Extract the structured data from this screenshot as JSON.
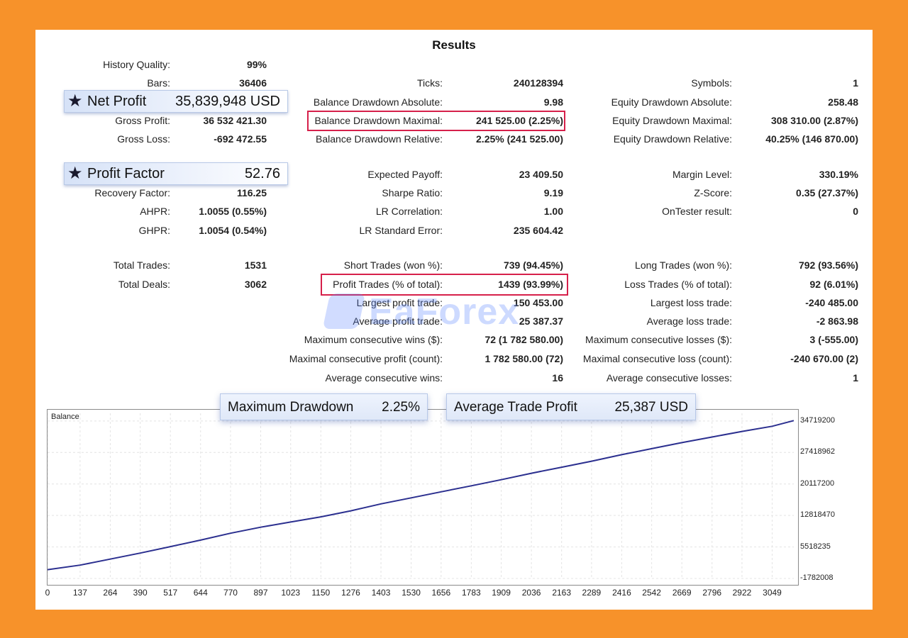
{
  "title": "Results",
  "col1": [
    {
      "label": "History Quality:",
      "value": "99%"
    },
    {
      "label": "Bars:",
      "value": "36406"
    },
    {
      "label": "Gross Profit:",
      "value": "36 532 421.30"
    },
    {
      "label": "Gross Loss:",
      "value": "-692 472.55"
    },
    {
      "label": "Recovery Factor:",
      "value": "116.25"
    },
    {
      "label": "AHPR:",
      "value": "1.0055 (0.55%)"
    },
    {
      "label": "GHPR:",
      "value": "1.0054 (0.54%)"
    },
    {
      "label": "Total Trades:",
      "value": "1531"
    },
    {
      "label": "Total Deals:",
      "value": "3062"
    }
  ],
  "col2": [
    {
      "label": "Ticks:",
      "value": "240128394"
    },
    {
      "label": "Balance Drawdown Absolute:",
      "value": "9.98"
    },
    {
      "label": "Balance Drawdown Maximal:",
      "value": "241 525.00 (2.25%)"
    },
    {
      "label": "Balance Drawdown Relative:",
      "value": "2.25% (241 525.00)"
    },
    {
      "label": "Expected Payoff:",
      "value": "23 409.50"
    },
    {
      "label": "Sharpe Ratio:",
      "value": "9.19"
    },
    {
      "label": "LR Correlation:",
      "value": "1.00"
    },
    {
      "label": "LR Standard Error:",
      "value": "235 604.42"
    },
    {
      "label": "Short Trades (won %):",
      "value": "739 (94.45%)"
    },
    {
      "label": "Profit Trades (% of total):",
      "value": "1439 (93.99%)"
    },
    {
      "label": "Largest profit trade:",
      "value": "150 453.00"
    },
    {
      "label": "Average profit trade:",
      "value": "25 387.37"
    },
    {
      "label": "Maximum consecutive wins ($):",
      "value": "72 (1 782 580.00)"
    },
    {
      "label": "Maximal consecutive profit (count):",
      "value": "1 782 580.00 (72)"
    },
    {
      "label": "Average consecutive wins:",
      "value": "16"
    }
  ],
  "col3": [
    {
      "label": "Symbols:",
      "value": "1"
    },
    {
      "label": "Equity Drawdown Absolute:",
      "value": "258.48"
    },
    {
      "label": "Equity Drawdown Maximal:",
      "value": "308 310.00 (2.87%)"
    },
    {
      "label": "Equity Drawdown Relative:",
      "value": "40.25% (146 870.00)"
    },
    {
      "label": "Margin Level:",
      "value": "330.19%"
    },
    {
      "label": "Z-Score:",
      "value": "0.35 (27.37%)"
    },
    {
      "label": "OnTester result:",
      "value": "0"
    },
    {
      "label": "Long Trades (won %):",
      "value": "792 (93.56%)"
    },
    {
      "label": "Loss Trades (% of total):",
      "value": "92 (6.01%)"
    },
    {
      "label": "Largest loss trade:",
      "value": "-240 485.00"
    },
    {
      "label": "Average loss trade:",
      "value": "-2 863.98"
    },
    {
      "label": "Maximum consecutive losses ($):",
      "value": "3 (-555.00)"
    },
    {
      "label": "Maximal consecutive loss (count):",
      "value": "-240 670.00 (2)"
    },
    {
      "label": "Average consecutive losses:",
      "value": "1"
    }
  ],
  "highlights": {
    "net_profit_label": "Net Profit",
    "net_profit_value": "35,839,948 USD",
    "profit_factor_label": "Profit Factor",
    "profit_factor_value": "52.76"
  },
  "callouts": {
    "max_dd_label": "Maximum Drawdown",
    "max_dd_value": "2.25%",
    "avg_trade_label": "Average Trade Profit",
    "avg_trade_value": "25,387 USD"
  },
  "watermark": "EaForex",
  "colors": {
    "background": "#f7922a",
    "highlight_border": "#d6204a",
    "line": "#2b2f8f"
  },
  "chart_data": {
    "type": "line",
    "title": "Balance",
    "x_ticks": [
      "0",
      "137",
      "264",
      "390",
      "517",
      "644",
      "770",
      "897",
      "1023",
      "1150",
      "1276",
      "1403",
      "1530",
      "1656",
      "1783",
      "1909",
      "2036",
      "2163",
      "2289",
      "2416",
      "2542",
      "2669",
      "2796",
      "2922",
      "3049"
    ],
    "y_ticks": [
      "34719200",
      "27418962",
      "20117200",
      "12818470",
      "5518235",
      "-1782008"
    ],
    "ylim": [
      -1782008,
      36500000
    ],
    "xlim": [
      0,
      3140
    ],
    "series": [
      {
        "values": [
          [
            0,
            250000
          ],
          [
            137,
            1300000
          ],
          [
            264,
            2700000
          ],
          [
            390,
            4100000
          ],
          [
            517,
            5600000
          ],
          [
            644,
            7100000
          ],
          [
            770,
            8700000
          ],
          [
            897,
            10100000
          ],
          [
            1023,
            11300000
          ],
          [
            1150,
            12500000
          ],
          [
            1276,
            13900000
          ],
          [
            1403,
            15500000
          ],
          [
            1530,
            16900000
          ],
          [
            1656,
            18300000
          ],
          [
            1783,
            19700000
          ],
          [
            1909,
            21100000
          ],
          [
            2036,
            22600000
          ],
          [
            2163,
            24000000
          ],
          [
            2289,
            25400000
          ],
          [
            2416,
            26900000
          ],
          [
            2542,
            28300000
          ],
          [
            2669,
            29700000
          ],
          [
            2796,
            31000000
          ],
          [
            2922,
            32300000
          ],
          [
            3049,
            33500000
          ],
          [
            3140,
            34800000
          ]
        ]
      }
    ]
  }
}
